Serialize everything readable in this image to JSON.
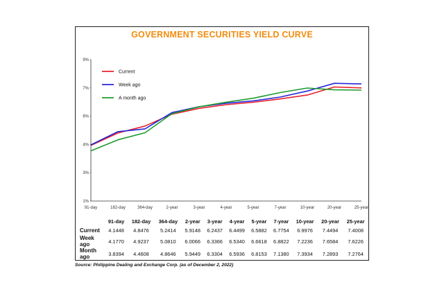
{
  "chart_data": {
    "type": "line",
    "title": "GOVERNMENT SECURITIES YIELD CURVE",
    "categories": [
      "91-day",
      "182-day",
      "364-day",
      "2-year",
      "3-year",
      "4-year",
      "5-year",
      "7-year",
      "10-year",
      "20-year",
      "25-year"
    ],
    "y_tick_labels": [
      "1%",
      "3%",
      "4%",
      "6%",
      "7%",
      "9%"
    ],
    "ylim": [
      1,
      9
    ],
    "legend_position": "top-left",
    "grid": false,
    "series": [
      {
        "name": "Current",
        "color": "#e8202a",
        "values": [
          4.1448,
          4.8476,
          5.2414,
          5.9148,
          6.2437,
          6.4499,
          6.5882,
          6.7754,
          6.9976,
          7.4494,
          7.4008
        ]
      },
      {
        "name": "Week ago",
        "color": "#2626d9",
        "values": [
          4.177,
          4.9237,
          5.081,
          6.0066,
          6.3366,
          6.534,
          6.6618,
          6.8822,
          7.2236,
          7.6584,
          7.6226
        ]
      },
      {
        "name": "A month ago",
        "color": "#1e9b2e",
        "values": [
          3.8394,
          4.4608,
          4.8646,
          5.9449,
          6.3304,
          6.5936,
          6.8153,
          7.138,
          7.3934,
          7.2893,
          7.2764
        ]
      }
    ],
    "table": {
      "headers": [
        "91-day",
        "182-day",
        "364-day",
        "2-year",
        "3-year",
        "4-year",
        "5-year",
        "7-year",
        "10-year",
        "20-year",
        "25-year"
      ],
      "rows": [
        {
          "label": "Current",
          "cells": [
            "4.1448",
            "4.8476",
            "5.2414",
            "5.9148",
            "6.2437",
            "6.4499",
            "6.5882",
            "6.7754",
            "6.9976",
            "7.4494",
            "7.4008"
          ]
        },
        {
          "label": "Week ago",
          "cells": [
            "4.1770",
            "4.9237",
            "5.0810",
            "6.0066",
            "6.3366",
            "6.5340",
            "6.6618",
            "6.8822",
            "7.2236",
            "7.6584",
            "7.6226"
          ]
        },
        {
          "label": "Month ago",
          "cells": [
            "3.8394",
            "4.4608",
            "4.8646",
            "5.9449",
            "6.3304",
            "6.5936",
            "6.8153",
            "7.1380",
            "7.3934",
            "7.2893",
            "7.2764"
          ]
        }
      ]
    },
    "source": "Source: Philippine Dealing and Exchange Corp. (as of December 2, 2022)"
  }
}
